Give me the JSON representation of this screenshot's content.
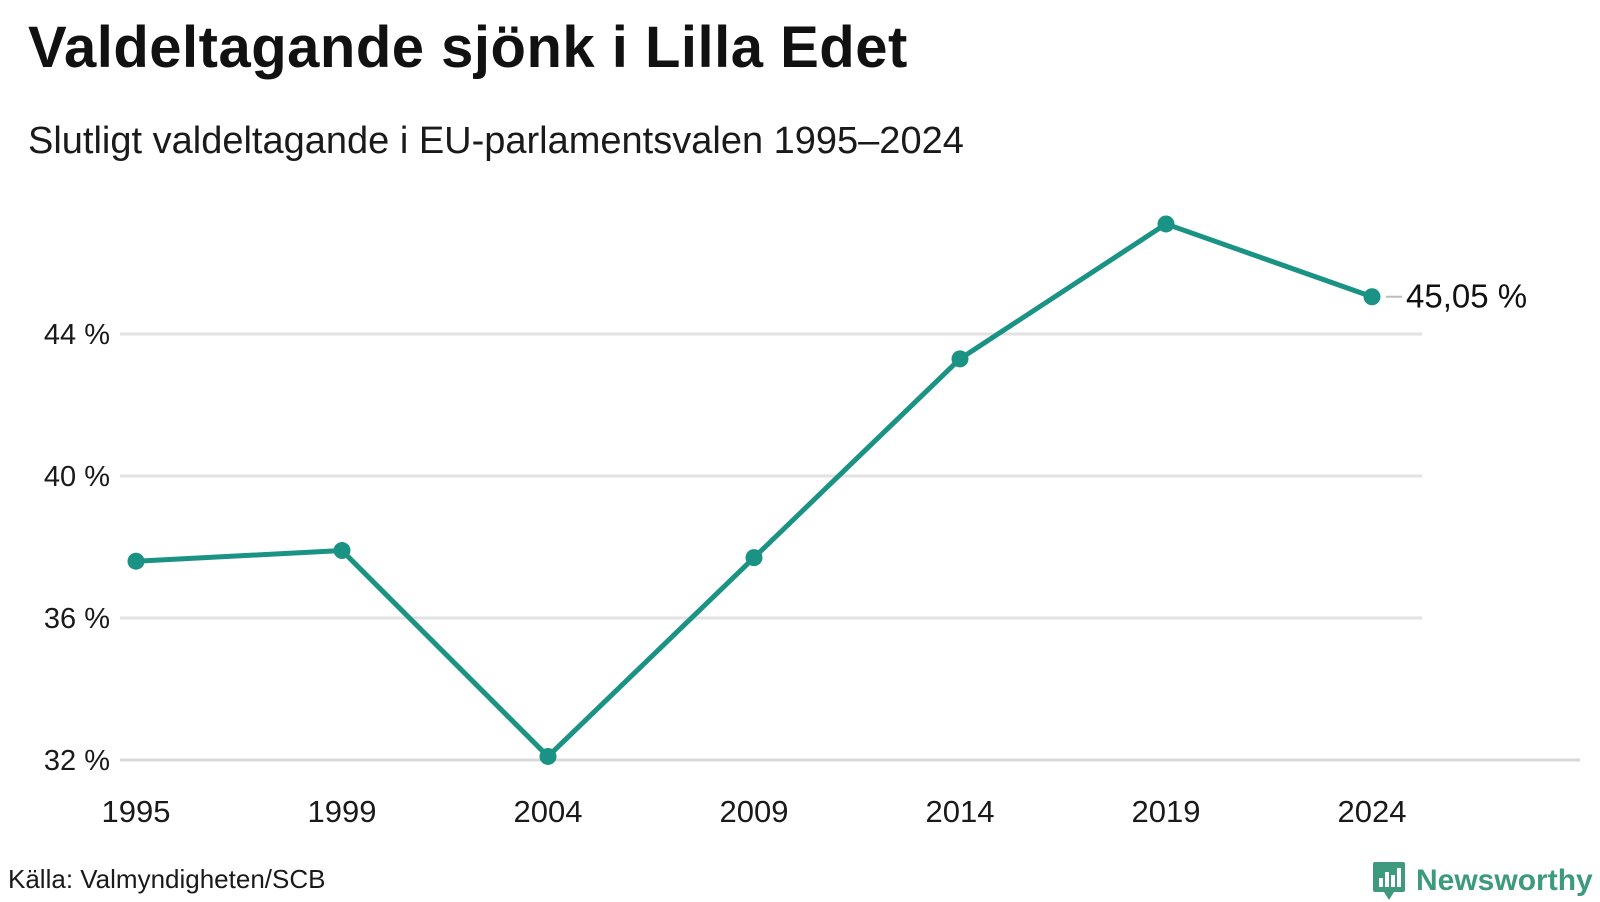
{
  "header": {
    "title": "Valdeltagande sjönk i Lilla Edet",
    "subtitle": "Slutligt valdeltagande i EU-parlamentsvalen 1995–2024"
  },
  "footer": {
    "source": "Källa: Valmyndigheten/SCB",
    "brand": "Newsworthy"
  },
  "colors": {
    "line": "#1a9385",
    "grid": "#e2e2e2",
    "brand": "#3d9a7f"
  },
  "chart_data": {
    "type": "line",
    "title": "Valdeltagande sjönk i Lilla Edet",
    "subtitle": "Slutligt valdeltagande i EU-parlamentsvalen 1995–2024",
    "xlabel": "",
    "ylabel": "",
    "categories": [
      "1995",
      "1999",
      "2004",
      "2009",
      "2014",
      "2019",
      "2024"
    ],
    "series": [
      {
        "values": [
          37.6,
          37.9,
          32.1,
          37.7,
          43.3,
          47.1,
          45.05
        ]
      }
    ],
    "ylim": [
      32,
      48
    ],
    "yticks": [
      32,
      36,
      40,
      44
    ],
    "ytick_labels": [
      "32 %",
      "36 %",
      "40 %",
      "44 %"
    ],
    "end_label": "45,05 %",
    "grid": true,
    "legend": "none"
  }
}
